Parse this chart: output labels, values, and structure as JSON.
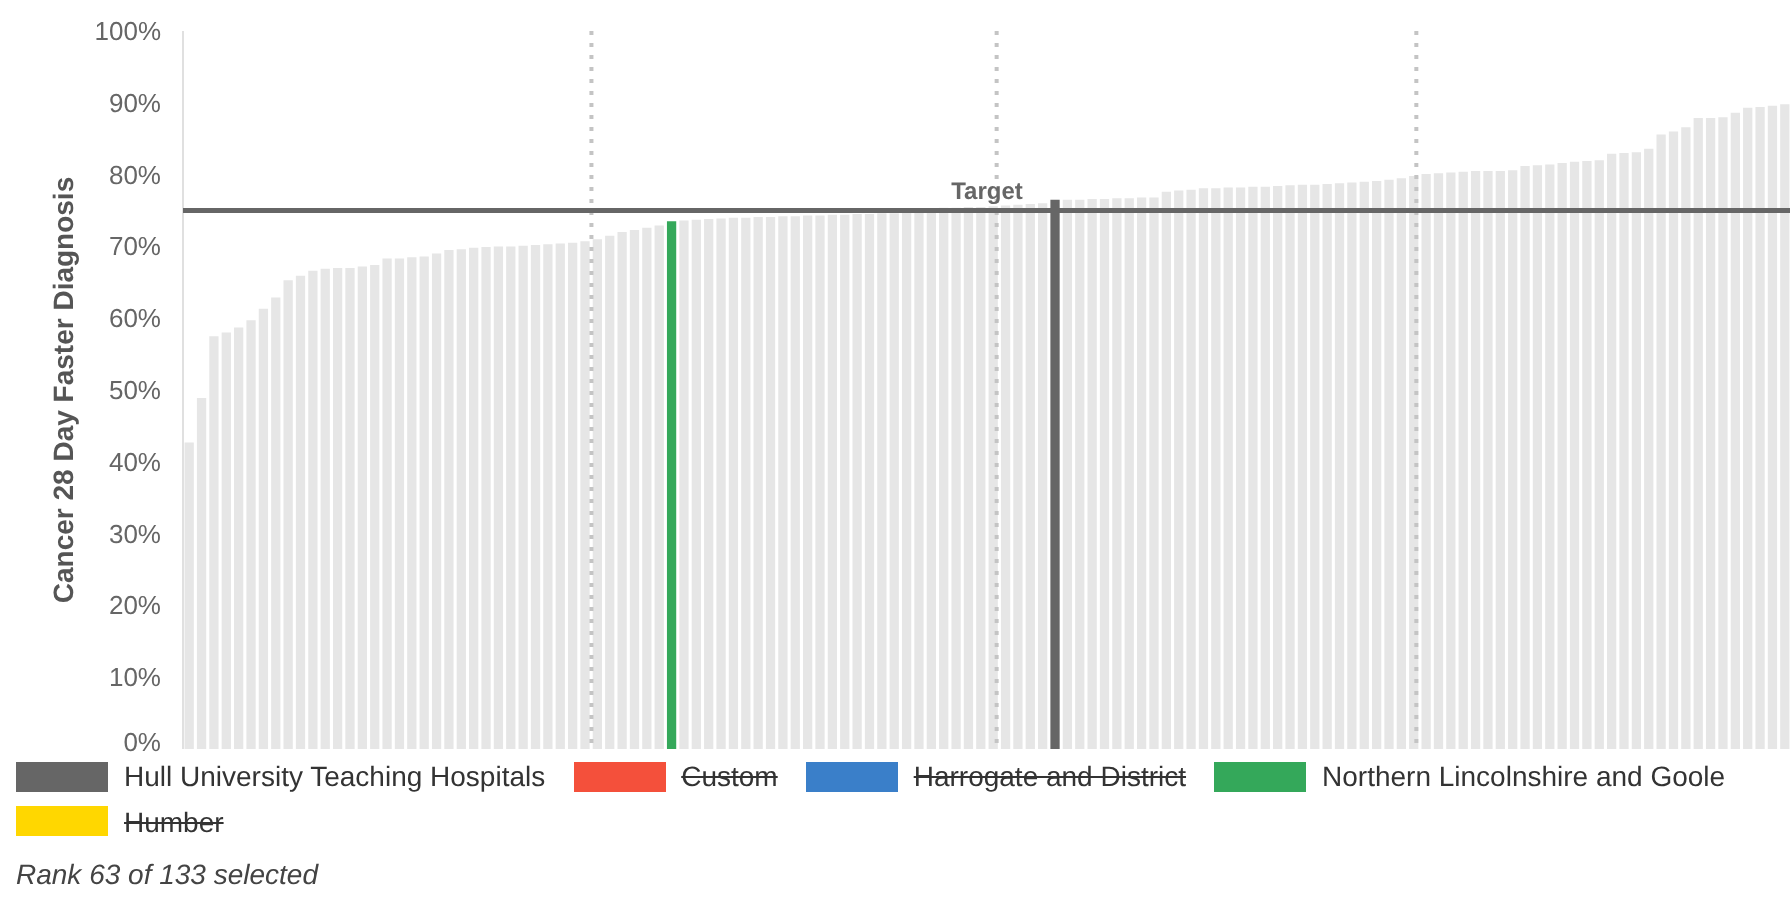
{
  "chart_data": {
    "type": "bar",
    "ylabel": "Cancer 28 Day Faster Diagnosis",
    "categories": [
      null,
      null,
      null,
      null,
      null,
      null,
      null,
      null,
      null,
      null,
      null,
      null,
      null,
      null,
      null,
      null,
      null,
      null,
      null,
      null,
      null,
      null,
      null,
      null,
      null,
      null,
      null,
      null,
      null,
      null,
      null,
      null,
      null,
      null,
      null,
      null,
      null,
      null,
      null,
      null,
      null,
      null,
      null,
      null,
      null,
      null,
      null,
      null,
      null,
      null,
      null,
      null,
      null,
      null,
      null,
      null,
      null,
      null,
      null,
      null,
      null,
      null,
      null,
      null,
      null,
      null,
      null,
      null,
      null,
      null,
      null,
      null,
      null,
      null,
      null,
      null,
      null,
      null,
      null,
      null,
      null,
      null,
      null,
      null,
      null,
      null,
      null,
      null,
      null,
      null,
      null,
      null,
      null,
      null,
      null,
      null,
      null,
      null,
      null,
      null,
      null,
      null,
      null,
      null,
      null,
      null,
      null,
      null,
      null,
      null,
      null,
      null,
      null,
      null,
      null,
      null,
      null,
      null,
      null,
      null,
      null,
      null,
      null,
      null,
      null,
      null,
      null,
      null,
      null,
      null
    ],
    "ylim": [
      0,
      100
    ],
    "yticks": [
      {
        "value": 0,
        "label": "0%"
      },
      {
        "value": 10,
        "label": "10%"
      },
      {
        "value": 20,
        "label": "20%"
      },
      {
        "value": 30,
        "label": "30%"
      },
      {
        "value": 40,
        "label": "40%"
      },
      {
        "value": 50,
        "label": "50%"
      },
      {
        "value": 60,
        "label": "60%"
      },
      {
        "value": 70,
        "label": "70%"
      },
      {
        "value": 80,
        "label": "80%"
      },
      {
        "value": 90,
        "label": "90%"
      },
      {
        "value": 100,
        "label": "100%"
      }
    ],
    "tick_labels": "y",
    "grid": false,
    "legend": "bottom",
    "stacked": true,
    "series": [
      {
        "color": "#e6e6e6",
        "values": [
          42.7,
          48.9,
          57.5,
          58.0,
          58.7,
          59.7,
          61.3,
          62.9,
          65.3,
          65.9,
          66.6,
          66.9,
          67.0,
          67.0,
          67.2,
          67.4,
          68.3,
          68.3,
          68.5,
          68.6,
          69.0,
          69.5,
          69.6,
          69.8,
          69.9,
          70.0,
          70.0,
          70.1,
          70.2,
          70.3,
          70.4,
          70.5,
          70.7,
          71.0,
          71.5,
          72.0,
          72.3,
          72.6,
          72.9,
          null,
          73.6,
          73.7,
          73.8,
          73.9,
          74.0,
          74.0,
          74.1,
          74.1,
          74.2,
          74.2,
          74.3,
          74.3,
          74.4,
          74.4,
          74.5,
          74.5,
          74.6,
          74.6,
          74.7,
          75.3,
          75.3,
          75.4,
          75.4,
          75.5,
          75.5,
          75.6,
          75.7,
          75.8,
          75.9,
          76.0,
          null,
          76.5,
          76.5,
          76.6,
          76.6,
          76.7,
          76.7,
          76.8,
          76.8,
          77.6,
          77.8,
          77.9,
          78.1,
          78.1,
          78.2,
          78.2,
          78.3,
          78.3,
          78.4,
          78.5,
          78.6,
          78.6,
          78.7,
          78.8,
          78.9,
          79.0,
          79.1,
          79.3,
          79.5,
          79.8,
          80.1,
          80.2,
          80.3,
          80.4,
          80.5,
          80.5,
          80.5,
          80.6,
          81.2,
          81.3,
          81.4,
          81.6,
          81.8,
          81.9,
          82.0,
          82.9,
          83.0,
          83.1,
          83.6,
          85.6,
          86.0,
          86.6,
          87.9,
          87.9,
          88.0,
          88.6,
          89.3,
          89.4,
          89.6,
          89.8
        ]
      },
      {
        "name": "Hull University Teaching Hospitals",
        "color": "#666666",
        "values": [
          null,
          null,
          null,
          null,
          null,
          null,
          null,
          null,
          null,
          null,
          null,
          null,
          null,
          null,
          null,
          null,
          null,
          null,
          null,
          null,
          null,
          null,
          null,
          null,
          null,
          null,
          null,
          null,
          null,
          null,
          null,
          null,
          null,
          null,
          null,
          null,
          null,
          null,
          null,
          null,
          null,
          null,
          null,
          null,
          null,
          null,
          null,
          null,
          null,
          null,
          null,
          null,
          null,
          null,
          null,
          null,
          null,
          null,
          null,
          null,
          null,
          null,
          null,
          null,
          null,
          null,
          null,
          null,
          null,
          null,
          76.5,
          null,
          null,
          null,
          null,
          null,
          null,
          null,
          null,
          null,
          null,
          null,
          null,
          null,
          null,
          null,
          null,
          null,
          null,
          null,
          null,
          null,
          null,
          null,
          null,
          null,
          null,
          null,
          null,
          null,
          null,
          null,
          null,
          null,
          null,
          null,
          null,
          null,
          null,
          null,
          null,
          null,
          null,
          null,
          null,
          null,
          null,
          null,
          null,
          null,
          null,
          null,
          null,
          null,
          null,
          null,
          null,
          null,
          null,
          null
        ]
      },
      {
        "name": "Custom",
        "color": "#f4503b",
        "values": [
          null,
          null,
          null,
          null,
          null,
          null,
          null,
          null,
          null,
          null,
          null,
          null,
          null,
          null,
          null,
          null,
          null,
          null,
          null,
          null,
          null,
          null,
          null,
          null,
          null,
          null,
          null,
          null,
          null,
          null,
          null,
          null,
          null,
          null,
          null,
          null,
          null,
          null,
          null,
          null,
          null,
          null,
          null,
          null,
          null,
          null,
          null,
          null,
          null,
          null,
          null,
          null,
          null,
          null,
          null,
          null,
          null,
          null,
          null,
          null,
          null,
          null,
          null,
          null,
          null,
          null,
          null,
          null,
          null,
          null,
          null,
          null,
          null,
          null,
          null,
          null,
          null,
          null,
          null,
          null,
          null,
          null,
          null,
          null,
          null,
          null,
          null,
          null,
          null,
          null,
          null,
          null,
          null,
          null,
          null,
          null,
          null,
          null,
          null,
          null,
          null,
          null,
          null,
          null,
          null,
          null,
          null,
          null,
          null,
          null,
          null,
          null,
          null,
          null,
          null,
          null,
          null,
          null,
          null,
          null,
          null,
          null,
          null,
          null,
          null,
          null,
          null,
          null,
          null,
          null
        ]
      },
      {
        "name": "Harrogate and District",
        "color": "#3a7fc9",
        "values": [
          null,
          null,
          null,
          null,
          null,
          null,
          null,
          null,
          null,
          null,
          null,
          null,
          null,
          null,
          null,
          null,
          null,
          null,
          null,
          null,
          null,
          null,
          null,
          null,
          null,
          null,
          null,
          null,
          null,
          null,
          null,
          null,
          null,
          null,
          null,
          null,
          null,
          null,
          null,
          null,
          null,
          null,
          null,
          null,
          null,
          null,
          null,
          null,
          null,
          null,
          null,
          null,
          null,
          null,
          null,
          null,
          null,
          null,
          null,
          null,
          null,
          null,
          null,
          null,
          null,
          null,
          null,
          null,
          null,
          null,
          null,
          null,
          null,
          null,
          null,
          null,
          null,
          null,
          null,
          null,
          null,
          null,
          null,
          null,
          null,
          null,
          null,
          null,
          null,
          null,
          null,
          null,
          null,
          null,
          null,
          null,
          null,
          null,
          null,
          null,
          null,
          null,
          null,
          null,
          null,
          null,
          null,
          null,
          null,
          null,
          null,
          null,
          null,
          null,
          null,
          null,
          null,
          null,
          null,
          null,
          null,
          null,
          null,
          null,
          null,
          null,
          null,
          null,
          null,
          null
        ]
      },
      {
        "name": "Northern Lincolnshire and Goole",
        "color": "#34a85a",
        "values": [
          null,
          null,
          null,
          null,
          null,
          null,
          null,
          null,
          null,
          null,
          null,
          null,
          null,
          null,
          null,
          null,
          null,
          null,
          null,
          null,
          null,
          null,
          null,
          null,
          null,
          null,
          null,
          null,
          null,
          null,
          null,
          null,
          null,
          null,
          null,
          null,
          null,
          null,
          null,
          73.5,
          null,
          null,
          null,
          null,
          null,
          null,
          null,
          null,
          null,
          null,
          null,
          null,
          null,
          null,
          null,
          null,
          null,
          null,
          null,
          null,
          null,
          null,
          null,
          null,
          null,
          null,
          null,
          null,
          null,
          null,
          null,
          null,
          null,
          null,
          null,
          null,
          null,
          null,
          null,
          null,
          null,
          null,
          null,
          null,
          null,
          null,
          null,
          null,
          null,
          null,
          null,
          null,
          null,
          null,
          null,
          null,
          null,
          null,
          null,
          null,
          null,
          null,
          null,
          null,
          null,
          null,
          null,
          null,
          null,
          null,
          null,
          null,
          null,
          null,
          null,
          null,
          null,
          null,
          null,
          null,
          null,
          null,
          null,
          null,
          null,
          null,
          null,
          null,
          null,
          null
        ]
      },
      {
        "name": "Humber",
        "color": "#ffd700",
        "values": [
          null,
          null,
          null,
          null,
          null,
          null,
          null,
          null,
          null,
          null,
          null,
          null,
          null,
          null,
          null,
          null,
          null,
          null,
          null,
          null,
          null,
          null,
          null,
          null,
          null,
          null,
          null,
          null,
          null,
          null,
          null,
          null,
          null,
          null,
          null,
          null,
          null,
          null,
          null,
          null,
          null,
          null,
          null,
          null,
          null,
          null,
          null,
          null,
          null,
          null,
          null,
          null,
          null,
          null,
          null,
          null,
          null,
          null,
          null,
          null,
          null,
          null,
          null,
          null,
          null,
          null,
          null,
          null,
          null,
          null,
          null,
          null,
          null,
          null,
          null,
          null,
          null,
          null,
          null,
          null,
          null,
          null,
          null,
          null,
          null,
          null,
          null,
          null,
          null,
          null,
          null,
          null,
          null,
          null,
          null,
          null,
          null,
          null,
          null,
          null,
          null,
          null,
          null,
          null,
          null,
          null,
          null,
          null,
          null,
          null,
          null,
          null,
          null,
          null,
          null,
          null,
          null,
          null,
          null,
          null,
          null,
          null,
          null,
          null,
          null,
          null,
          null,
          null,
          null,
          null
        ]
      }
    ],
    "ref_lines": [
      {
        "axis": "y",
        "value": 75,
        "label": "Target",
        "color": "#666666",
        "line_style": "solid"
      }
    ],
    "annotations": [
      "Rank 63 of 133 selected"
    ]
  }
}
